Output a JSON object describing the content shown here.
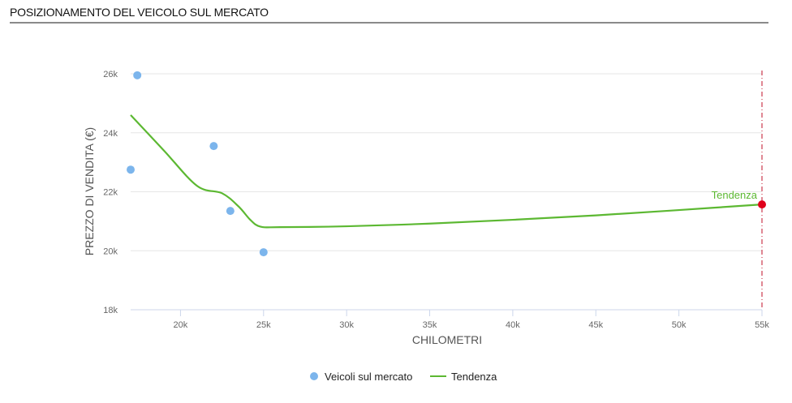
{
  "header": {
    "title": "POSIZIONAMENTO DEL VEICOLO SUL MERCATO"
  },
  "colors": {
    "scatter": "#7cb5ec",
    "trend": "#5cb832",
    "marker": "#e0001b",
    "grid": "#e6e6e6"
  },
  "chart_data": {
    "type": "scatter",
    "title": "",
    "xlabel": "CHILOMETRI",
    "ylabel": "PREZZO DI VENDITA (€)",
    "xlim": [
      17000,
      55000
    ],
    "ylim": [
      18000,
      26000
    ],
    "x_ticks": [
      20000,
      25000,
      30000,
      35000,
      40000,
      45000,
      50000,
      55000
    ],
    "x_tick_labels": [
      "20k",
      "25k",
      "30k",
      "35k",
      "40k",
      "45k",
      "50k",
      "55k"
    ],
    "y_ticks": [
      18000,
      20000,
      22000,
      24000,
      26000
    ],
    "y_tick_labels": [
      "18k",
      "20k",
      "22k",
      "24k",
      "26k"
    ],
    "grid": true,
    "legend_position": "bottom-center",
    "series": [
      {
        "name": "Veicoli sul mercato",
        "kind": "scatter",
        "points": [
          {
            "x": 17400,
            "y": 25950
          },
          {
            "x": 17000,
            "y": 22750
          },
          {
            "x": 22000,
            "y": 23550
          },
          {
            "x": 23000,
            "y": 21350
          },
          {
            "x": 25000,
            "y": 19950
          }
        ]
      },
      {
        "name": "Tendenza",
        "kind": "line",
        "points": [
          {
            "x": 17000,
            "y": 24600
          },
          {
            "x": 19000,
            "y": 23400
          },
          {
            "x": 21000,
            "y": 22200
          },
          {
            "x": 22500,
            "y": 21950
          },
          {
            "x": 23500,
            "y": 21500
          },
          {
            "x": 24200,
            "y": 21050
          },
          {
            "x": 24800,
            "y": 20820
          },
          {
            "x": 26000,
            "y": 20800
          },
          {
            "x": 30000,
            "y": 20830
          },
          {
            "x": 35000,
            "y": 20920
          },
          {
            "x": 40000,
            "y": 21050
          },
          {
            "x": 45000,
            "y": 21200
          },
          {
            "x": 50000,
            "y": 21380
          },
          {
            "x": 55000,
            "y": 21570
          }
        ]
      }
    ],
    "annotation": {
      "label": "Tendenza",
      "x": 55000,
      "y": 21570
    }
  }
}
